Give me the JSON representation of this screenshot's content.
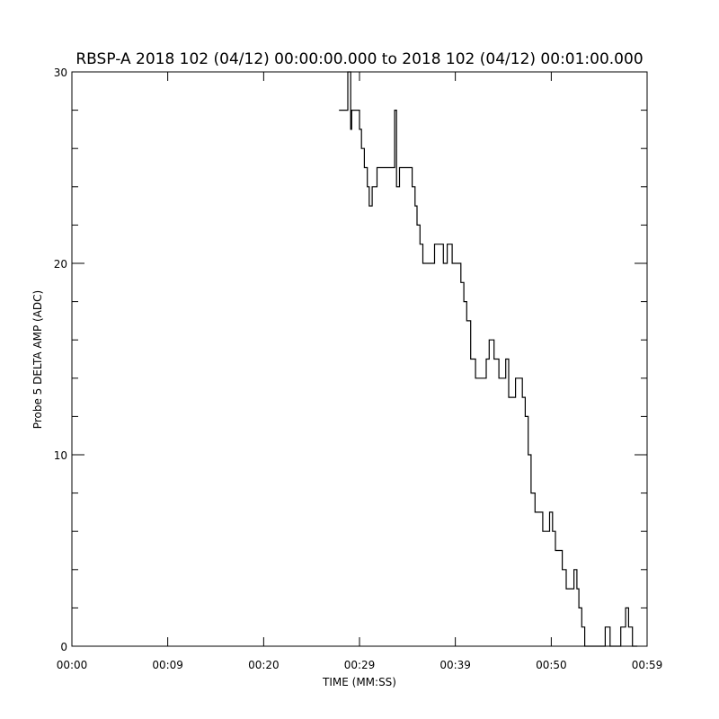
{
  "chart_data": {
    "type": "line",
    "title": "RBSP-A 2018 102 (04/12) 00:00:00.000 to 2018 102 (04/12) 00:01:00.000",
    "xlabel": "TIME (MM:SS)",
    "ylabel": "Probe 5 DELTA AMP (ADC)",
    "xlim_seconds": [
      0,
      59
    ],
    "ylim": [
      0,
      30
    ],
    "x_ticks": [
      {
        "value": 0,
        "label": "00:00"
      },
      {
        "value": 9.83,
        "label": "00:09"
      },
      {
        "value": 19.67,
        "label": "00:20"
      },
      {
        "value": 29.5,
        "label": "00:29"
      },
      {
        "value": 39.33,
        "label": "00:39"
      },
      {
        "value": 49.17,
        "label": "00:50"
      },
      {
        "value": 59,
        "label": "00:59"
      }
    ],
    "y_ticks": [
      {
        "value": 0,
        "label": "0"
      },
      {
        "value": 10,
        "label": "10"
      },
      {
        "value": 20,
        "label": "20"
      },
      {
        "value": 30,
        "label": "30"
      }
    ],
    "grid": false,
    "series": [
      {
        "color": "#000000",
        "step": true,
        "x": [
          27.4,
          28.3,
          28.6,
          28.7,
          29.3,
          29.5,
          29.7,
          30.0,
          30.3,
          30.5,
          30.8,
          31.1,
          31.3,
          31.6,
          32.2,
          33.1,
          33.3,
          33.6,
          34.0,
          34.5,
          34.9,
          35.2,
          35.4,
          35.7,
          36.0,
          36.3,
          37.2,
          38.1,
          38.5,
          39.0,
          39.5,
          39.9,
          40.2,
          40.5,
          40.9,
          41.4,
          41.8,
          42.5,
          42.8,
          43.3,
          43.8,
          44.1,
          44.5,
          44.8,
          45.5,
          45.8,
          46.2,
          46.5,
          46.8,
          47.1,
          47.5,
          48.3,
          48.7,
          49.0,
          49.3,
          49.6,
          50.3,
          50.7,
          51.1,
          51.5,
          51.8,
          52.0,
          52.3,
          52.6,
          53.2,
          53.8,
          54.7,
          55.2,
          55.5,
          56.3,
          56.8,
          57.1,
          57.5,
          57.9
        ],
        "values": [
          28,
          30,
          27,
          28,
          28,
          27,
          26,
          25,
          24,
          23,
          24,
          24,
          25,
          25,
          25,
          28,
          24,
          25,
          25,
          25,
          24,
          23,
          22,
          21,
          20,
          20,
          21,
          20,
          21,
          20,
          20,
          19,
          18,
          17,
          15,
          14,
          14,
          15,
          16,
          15,
          14,
          14,
          15,
          13,
          14,
          14,
          13,
          12,
          10,
          8,
          7,
          6,
          6,
          7,
          6,
          5,
          4,
          3,
          3,
          4,
          3,
          2,
          1,
          0,
          0,
          0,
          1,
          0,
          0,
          1,
          2,
          1,
          0,
          0
        ]
      }
    ]
  }
}
